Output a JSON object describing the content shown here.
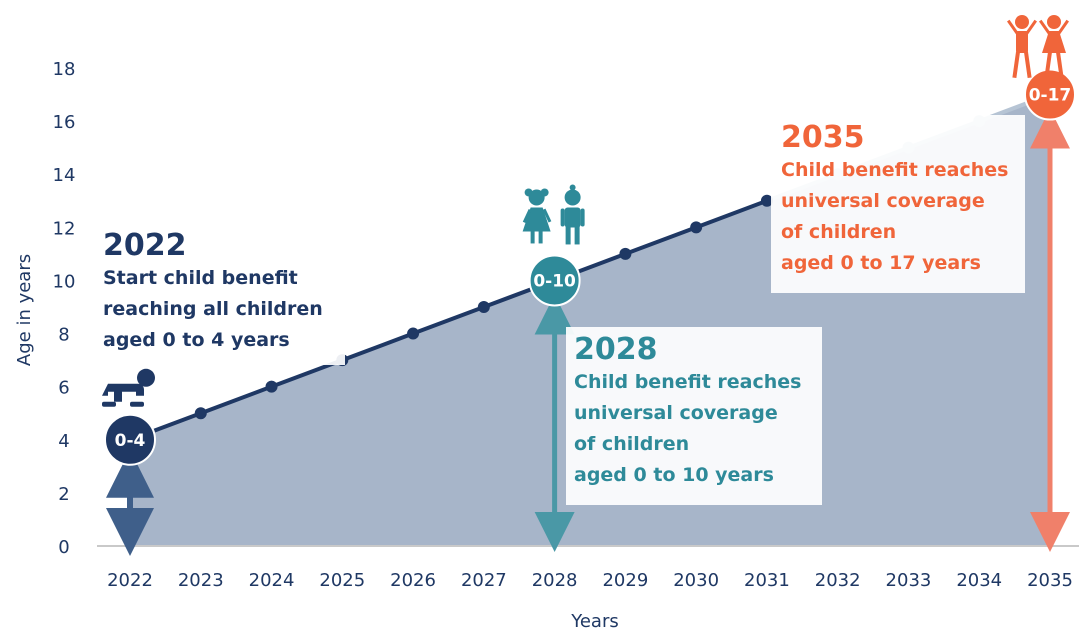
{
  "colors": {
    "navy": "#1f3864",
    "teal": "#2e8a99",
    "orange": "#f0653a",
    "area": "#a7b5c9",
    "line_late": "#b6c4d4",
    "axis": "#c9c9c9"
  },
  "chart_data": {
    "type": "area",
    "xlabel": "Years",
    "ylabel": "Age in years",
    "xlim": [
      2022,
      2035
    ],
    "ylim": [
      0,
      18
    ],
    "x_ticks": [
      "2022",
      "2023",
      "2024",
      "2025",
      "2026",
      "2027",
      "2028",
      "2029",
      "2030",
      "2031",
      "2032",
      "2033",
      "2034",
      "2035"
    ],
    "y_ticks": [
      0,
      2,
      4,
      6,
      8,
      10,
      12,
      14,
      16,
      18
    ],
    "grid": false,
    "series": [
      {
        "x": [
          2022,
          2023,
          2024,
          2025,
          2026,
          2027,
          2028,
          2029,
          2030,
          2031,
          2032,
          2033,
          2034,
          2035
        ],
        "values": [
          4,
          5,
          6,
          7,
          8,
          9,
          10,
          11,
          12,
          13,
          14,
          15,
          16,
          17
        ]
      }
    ],
    "milestones": [
      {
        "year": 2022,
        "age": 4,
        "badge": "0-4",
        "color": "#1f3864",
        "icon": "baby-icon",
        "title": "2022",
        "lines": [
          "Start child benefit",
          "reaching all children",
          "aged 0 to 4 years"
        ]
      },
      {
        "year": 2028,
        "age": 10,
        "badge": "0-10",
        "color": "#2e8a99",
        "icon": "children-icon",
        "title": "2028",
        "lines": [
          "Child benefit reaches",
          "universal coverage",
          "of children",
          "aged 0 to 10 years"
        ]
      },
      {
        "year": 2035,
        "age": 17,
        "badge": "0-17",
        "color": "#f0653a",
        "icon": "teenagers-icon",
        "title": "2035",
        "lines": [
          "Child benefit reaches",
          "universal coverage",
          "of children",
          "aged 0 to 17 years"
        ]
      }
    ]
  }
}
